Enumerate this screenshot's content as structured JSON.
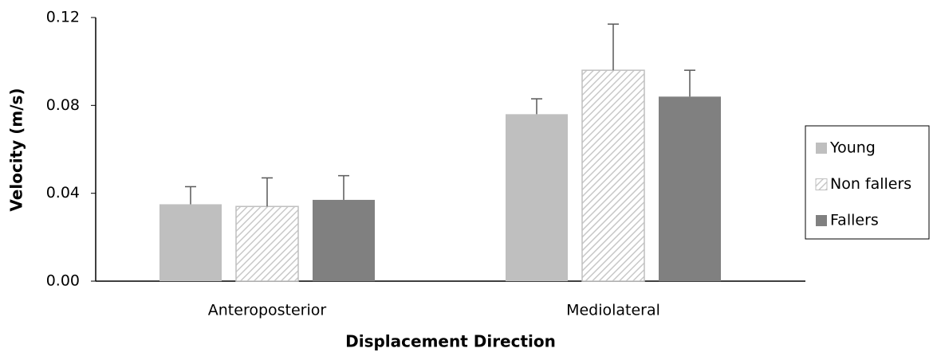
{
  "chart_data": {
    "type": "bar",
    "x_label": "Displacement Direction",
    "y_label": "Velocity (m/s)",
    "categories": [
      "Anteroposterior",
      "Mediolateral"
    ],
    "series": [
      {
        "name": "Young",
        "color": "#bfbfbf",
        "values": [
          0.035,
          0.076
        ],
        "errors": [
          0.008,
          0.007
        ]
      },
      {
        "name": "Non fallers",
        "color": "#bfbfbf",
        "hatch": true,
        "values": [
          0.034,
          0.096
        ],
        "errors": [
          0.013,
          0.021
        ]
      },
      {
        "name": "Fallers",
        "color": "#808080",
        "values": [
          0.037,
          0.084
        ],
        "errors": [
          0.011,
          0.012
        ]
      }
    ],
    "ylim": [
      0,
      0.12
    ],
    "yticks": [
      {
        "value": 0,
        "label": "0.00"
      },
      0.04,
      0.08,
      0.12
    ],
    "grid": false,
    "legend": "right"
  }
}
